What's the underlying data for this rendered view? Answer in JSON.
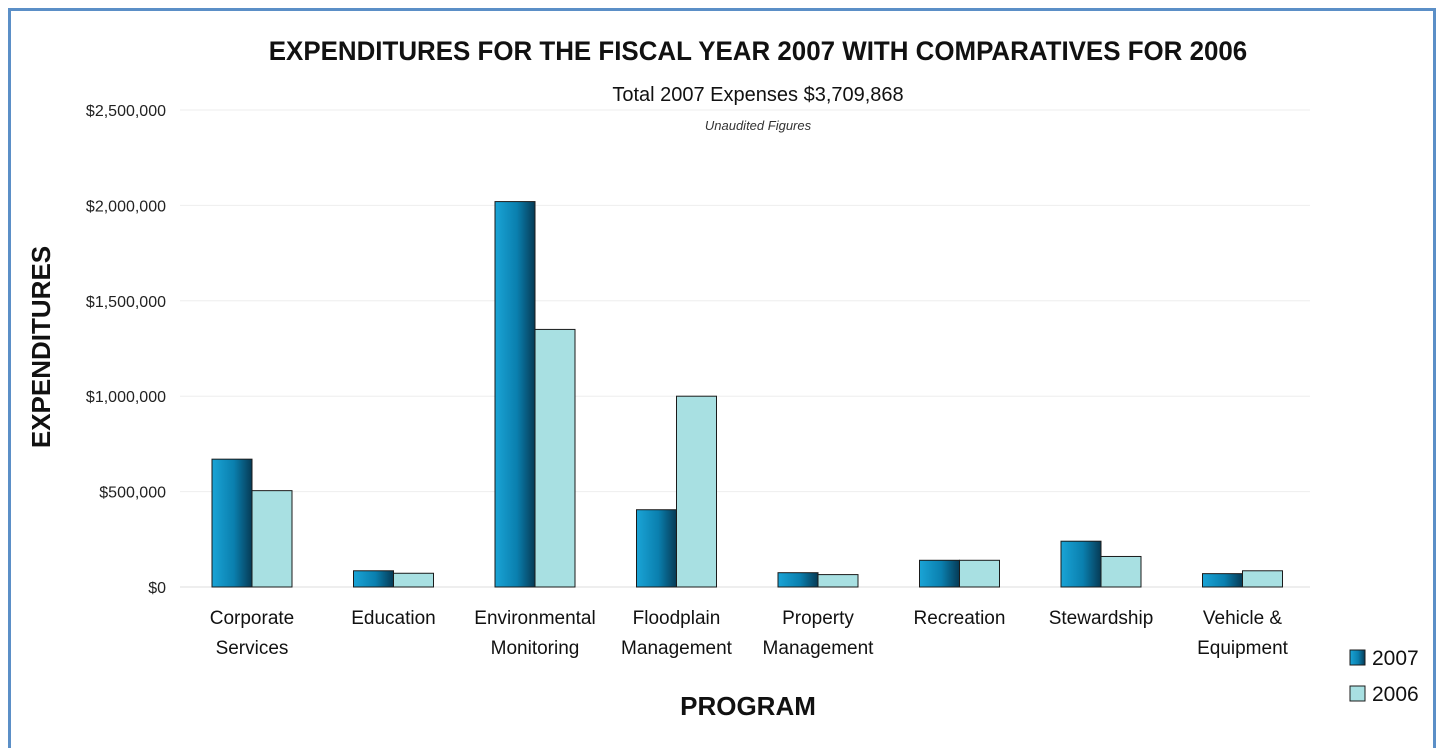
{
  "chart_data": {
    "type": "bar",
    "title": "EXPENDITURES FOR THE FISCAL YEAR 2007 WITH COMPARATIVES FOR 2006",
    "subtitle": "Total 2007 Expenses $3,709,868",
    "note": "Unaudited Figures",
    "xlabel": "PROGRAM",
    "ylabel": "EXPENDITURES",
    "ylim": [
      0,
      2500000
    ],
    "yticks": [
      0,
      500000,
      1000000,
      1500000,
      2000000,
      2500000
    ],
    "ytick_labels": [
      "$0",
      "$500,000",
      "$1,000,000",
      "$1,500,000",
      "$2,000,000",
      "$2,500,000"
    ],
    "grid": true,
    "legend_position": "bottom-right",
    "categories": [
      [
        "Corporate",
        "Services"
      ],
      [
        "Education"
      ],
      [
        "Environmental",
        "Monitoring"
      ],
      [
        "Floodplain",
        "Management"
      ],
      [
        "Property",
        "Management"
      ],
      [
        "Recreation"
      ],
      [
        "Stewardship"
      ],
      [
        "Vehicle &",
        "Equipment"
      ]
    ],
    "series": [
      {
        "name": "2007",
        "color": "#0a86b8",
        "values": [
          670000,
          85000,
          2020000,
          405000,
          75000,
          140000,
          240000,
          70000
        ]
      },
      {
        "name": "2006",
        "color": "#a8e0e2",
        "values": [
          505000,
          72000,
          1350000,
          1000000,
          65000,
          140000,
          160000,
          85000
        ]
      }
    ]
  }
}
